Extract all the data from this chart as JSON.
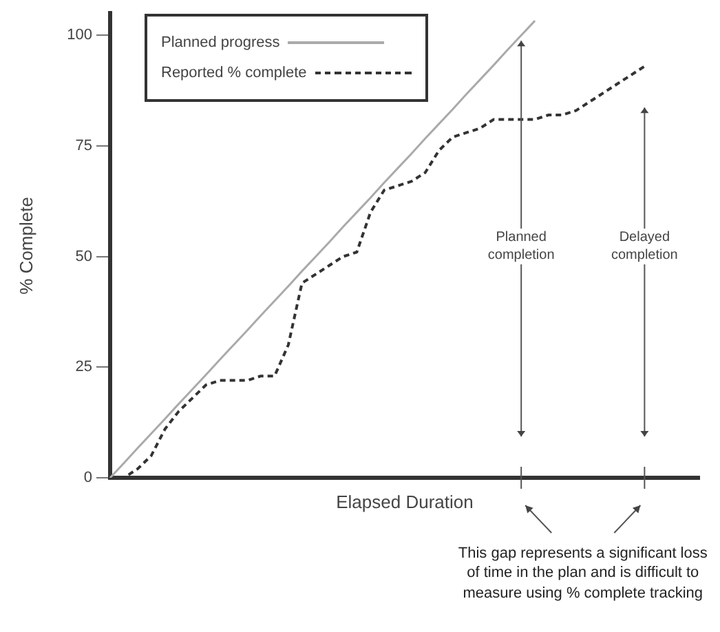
{
  "chart_data": {
    "type": "line",
    "xlabel": "Elapsed Duration",
    "ylabel": "% Complete",
    "categories": [
      null,
      null,
      null,
      null,
      null,
      null,
      null,
      null,
      null,
      null,
      null,
      null,
      null,
      null,
      null,
      null,
      null,
      null,
      null,
      null,
      null,
      null,
      null,
      null,
      null,
      null,
      null,
      null,
      null,
      null,
      null,
      null,
      null,
      null,
      null,
      null,
      null,
      null,
      null,
      null,
      null,
      null,
      null,
      null
    ],
    "ylim": [
      0,
      105
    ],
    "yticks": [
      0,
      25,
      50,
      75,
      100
    ],
    "grid": false,
    "legend": "top left",
    "marker": "none",
    "series": [
      {
        "name": "Planned progress",
        "color": "#aaaaaa",
        "line_style": "solid",
        "values": [
          0,
          3.3,
          6.7,
          10,
          13.3,
          16.7,
          20,
          23.3,
          26.7,
          30,
          33.3,
          36.7,
          40,
          43.3,
          46.7,
          50,
          53.3,
          56.7,
          60,
          63.3,
          66.7,
          70,
          73.3,
          76.7,
          80,
          83.3,
          86.7,
          90,
          93.3,
          96.7,
          100,
          103.3,
          null,
          null,
          null,
          null,
          null,
          null,
          null,
          null,
          null,
          null,
          null,
          null
        ]
      },
      {
        "name": "Reported % complete",
        "color": "#333333",
        "line_style": "dashed",
        "values": [
          0,
          0,
          2,
          5,
          11,
          15,
          18,
          21,
          22,
          22,
          22,
          23,
          23,
          30,
          44,
          46,
          48,
          50,
          51,
          60,
          65,
          66,
          67,
          69,
          74,
          77,
          78,
          79,
          81,
          81,
          81,
          81,
          82,
          82,
          83,
          85,
          87,
          89,
          91,
          93,
          null,
          null,
          null,
          null
        ]
      }
    ],
    "annotations": [
      "Planned completion",
      "Delayed completion",
      "This gap represents a significant loss of time in the plan and is difficult to measure using % complete tracking"
    ]
  }
}
